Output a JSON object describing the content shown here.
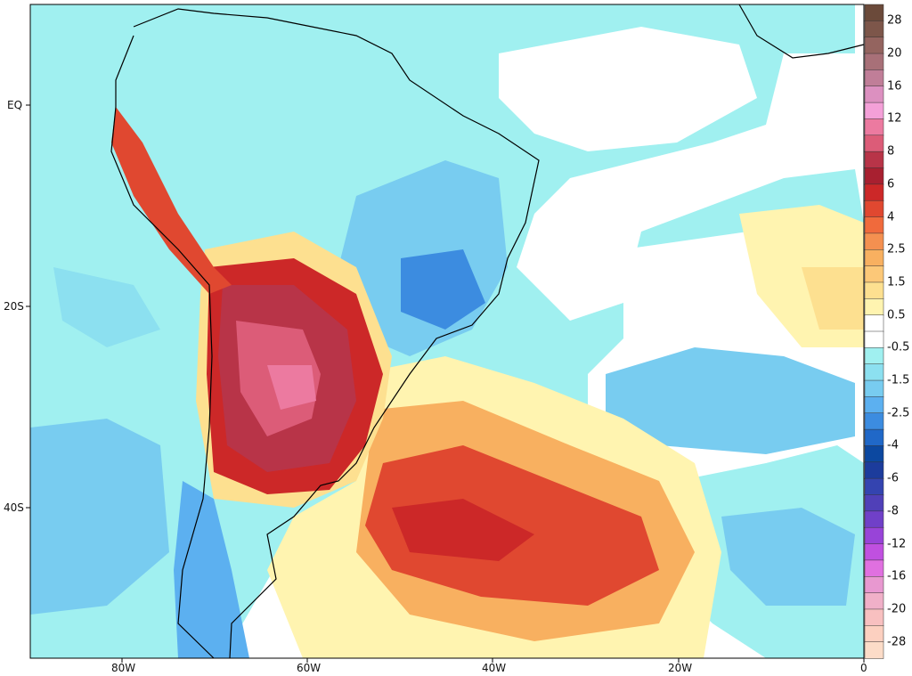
{
  "map": {
    "lat_labels": [
      "EQ",
      "20S",
      "40S"
    ],
    "lon_labels": [
      "80W",
      "60W",
      "40W",
      "20W",
      "0"
    ]
  },
  "colorbar": {
    "labels": [
      "28",
      "20",
      "16",
      "12",
      "8",
      "6",
      "4",
      "2.5",
      "1.5",
      "0.5",
      "-0.5",
      "-1.5",
      "-2.5",
      "-4",
      "-6",
      "-8",
      "-12",
      "-16",
      "-20",
      "-28"
    ],
    "colors": [
      "#6b4a3a",
      "#7d564a",
      "#94645f",
      "#a87078",
      "#c07e98",
      "#dc90c0",
      "#f4a0d8",
      "#ec7aa0",
      "#dc5c78",
      "#b83448",
      "#a82030",
      "#cc2828",
      "#e04830",
      "#f06a3c",
      "#f49050",
      "#f8b060",
      "#fcc878",
      "#fde090",
      "#fff4b0",
      "#ffffff",
      "#ffffff",
      "#a0f0f0",
      "#8ce0f0",
      "#78ccf0",
      "#5cb0f0",
      "#3c8ce0",
      "#2068c8",
      "#0c48a0",
      "#1c3c9c",
      "#3444b0",
      "#5040b8",
      "#7040c8",
      "#9844d8",
      "#c050e0",
      "#e070e0",
      "#e898d0",
      "#f0b0c8",
      "#f8c0c0",
      "#fcd0c0",
      "#fcdcc8"
    ]
  }
}
